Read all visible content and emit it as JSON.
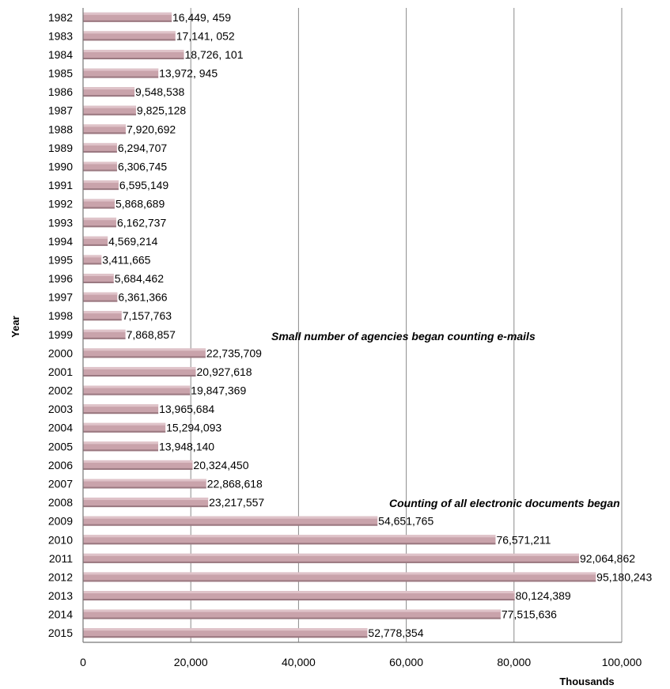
{
  "chart_data": {
    "type": "bar",
    "orientation": "horizontal",
    "categories": [
      "1982",
      "1983",
      "1984",
      "1985",
      "1986",
      "1987",
      "1988",
      "1989",
      "1990",
      "1991",
      "1992",
      "1993",
      "1994",
      "1995",
      "1996",
      "1997",
      "1998",
      "1999",
      "2000",
      "2001",
      "2002",
      "2003",
      "2004",
      "2005",
      "2006",
      "2007",
      "2008",
      "2009",
      "2010",
      "2011",
      "2012",
      "2013",
      "2014",
      "2015"
    ],
    "values": [
      16449.459,
      17141.052,
      18726.101,
      13972.945,
      9548.538,
      9825.128,
      7920.692,
      6294.707,
      6306.745,
      6595.149,
      5868.689,
      6162.737,
      4569.214,
      3411.665,
      5684.462,
      6361.366,
      7157.763,
      7868.857,
      22735.709,
      20927.618,
      19847.369,
      13965.684,
      15294.093,
      13948.14,
      20324.45,
      22868.618,
      23217.557,
      54651.765,
      76571.211,
      92064.862,
      95180.243,
      80124.389,
      77515.636,
      52778.354
    ],
    "data_labels": [
      "16,449, 459",
      "17,141, 052",
      "18,726, 101",
      "13,972, 945",
      "9,548,538",
      "9,825,128",
      "7,920,692",
      "6,294,707",
      "6,306,745",
      "6,595,149",
      "5,868,689",
      "6,162,737",
      "4,569,214",
      "3,411,665",
      "5,684,462",
      "6,361,366",
      "7,157,763",
      "7,868,857",
      "22,735,709",
      "20,927,618",
      "19,847,369",
      "13,965,684",
      "15,294,093",
      "13,948,140",
      "20,324,450",
      "22,868,618",
      "23,217,557",
      "54,651,765",
      "76,571,211",
      "92,064,862",
      "95,180,243",
      "80,124,389",
      "77,515,636",
      "52,778,354"
    ],
    "xlabel": "Thousands",
    "ylabel": "Year",
    "xlim": [
      0,
      100000
    ],
    "x_ticks": [
      0,
      20000,
      40000,
      60000,
      80000,
      100000
    ],
    "x_tick_labels": [
      "0",
      "20,000",
      "40,000",
      "60,000",
      "80,000",
      "100,000"
    ],
    "grid": "vertical",
    "annotations": [
      {
        "text": "Small number of agencies began counting e-mails",
        "year": "1999"
      },
      {
        "text": "Counting of all electronic documents began",
        "year": "2008"
      }
    ],
    "colors": {
      "bar": "#c9a3ab",
      "bar_top": "#dfc3c9",
      "bar_shadow": "#9a7880",
      "grid": "#8a8a8a",
      "axis": "#777777"
    }
  }
}
